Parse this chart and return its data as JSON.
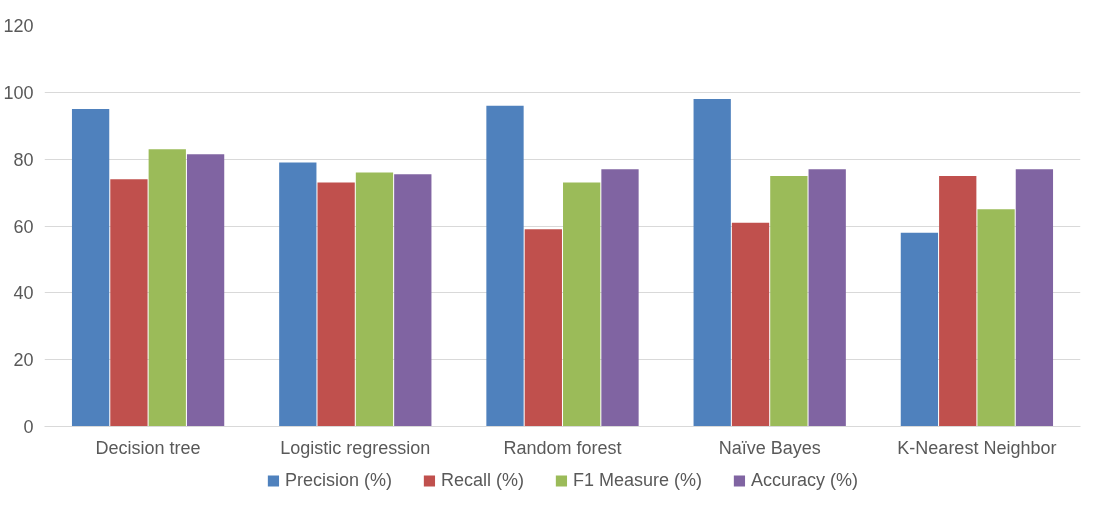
{
  "chart_data": {
    "type": "bar",
    "categories": [
      "Decision tree",
      "Logistic regression",
      "Random forest",
      "Naïve Bayes",
      "K-Nearest Neighbor"
    ],
    "series": [
      {
        "name": "Precision (%)",
        "color": "#4f81bd",
        "values": [
          95,
          79,
          96,
          98,
          58
        ]
      },
      {
        "name": "Recall (%)",
        "color": "#c0504d",
        "values": [
          74,
          73,
          59,
          61,
          75
        ]
      },
      {
        "name": "F1 Measure (%)",
        "color": "#9bbb59",
        "values": [
          83,
          76,
          73,
          75,
          65
        ]
      },
      {
        "name": "Accuracy (%)",
        "color": "#8064a2",
        "values": [
          81.5,
          75.5,
          77,
          77,
          77
        ]
      }
    ],
    "ylim": [
      0,
      120
    ],
    "yticks": [
      0,
      20,
      40,
      60,
      80,
      100,
      120
    ],
    "grid": "y",
    "legend": "bottom"
  }
}
